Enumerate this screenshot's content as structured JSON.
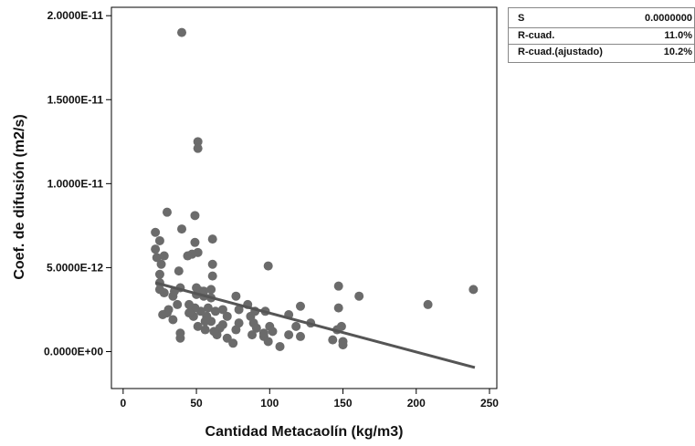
{
  "chart_data": {
    "type": "scatter",
    "title": "",
    "xlabel": "Cantidad Metacaolín (kg/m3)",
    "ylabel": "Coef. de difusión (m2/s)",
    "xlim": [
      -8,
      255
    ],
    "ylim": [
      -2.2e-12,
      2.05e-11
    ],
    "x_ticks": [
      0,
      50,
      100,
      150,
      200,
      250
    ],
    "x_tick_labels": [
      "0",
      "50",
      "100",
      "150",
      "200",
      "250"
    ],
    "y_ticks": [
      0,
      5e-12,
      1e-11,
      1.5e-11,
      2e-11
    ],
    "y_tick_labels": [
      "0.0000E+00",
      "5.0000E-12",
      "1.0000E-11",
      "1.5000E-11",
      "2.0000E-11"
    ],
    "grid": false,
    "point_color": "#6b6b6b",
    "line_color": "#555555",
    "fit_line": {
      "x": [
        22,
        240
      ],
      "y": [
        4.1e-12,
        -9.5e-13
      ]
    },
    "points": [
      [
        40,
        1.9e-11
      ],
      [
        51,
        1.25e-11
      ],
      [
        51,
        1.21e-11
      ],
      [
        99,
        5.1e-12
      ],
      [
        239,
        3.7e-12
      ],
      [
        208,
        2.8e-12
      ],
      [
        161,
        3.3e-12
      ],
      [
        147,
        3.9e-12
      ],
      [
        147,
        2.6e-12
      ],
      [
        149,
        1.5e-12
      ],
      [
        146,
        1.3e-12
      ],
      [
        150,
        6e-13
      ],
      [
        150,
        4e-13
      ],
      [
        121,
        2.7e-12
      ],
      [
        113,
        2.2e-12
      ],
      [
        118,
        1.5e-12
      ],
      [
        121,
        9e-13
      ],
      [
        113,
        1e-12
      ],
      [
        128,
        1.7e-12
      ],
      [
        100,
        1.5e-12
      ],
      [
        102,
        1.2e-12
      ],
      [
        96,
        9e-13
      ],
      [
        99,
        6e-13
      ],
      [
        96,
        1.1e-12
      ],
      [
        97,
        2.4e-12
      ],
      [
        90,
        2.4e-12
      ],
      [
        89,
        1.7e-12
      ],
      [
        87,
        2.1e-12
      ],
      [
        85,
        2.8e-12
      ],
      [
        91,
        1.4e-12
      ],
      [
        88,
        1e-12
      ],
      [
        79,
        2.5e-12
      ],
      [
        77,
        3.3e-12
      ],
      [
        79,
        1.7e-12
      ],
      [
        77,
        1.3e-12
      ],
      [
        75,
        5e-13
      ],
      [
        71,
        8e-13
      ],
      [
        68,
        1.6e-12
      ],
      [
        71,
        2.1e-12
      ],
      [
        68,
        2.5e-12
      ],
      [
        66,
        1.4e-12
      ],
      [
        64,
        1e-12
      ],
      [
        62,
        1.2e-12
      ],
      [
        61,
        6.7e-12
      ],
      [
        61,
        5.2e-12
      ],
      [
        61,
        4.5e-12
      ],
      [
        60,
        3.7e-12
      ],
      [
        60,
        3.2e-12
      ],
      [
        58,
        2.6e-12
      ],
      [
        60,
        1.8e-12
      ],
      [
        56,
        1.3e-12
      ],
      [
        57,
        2.1e-12
      ],
      [
        55,
        3.3e-12
      ],
      [
        55,
        3.6e-12
      ],
      [
        53,
        3.6e-12
      ],
      [
        53,
        2.4e-12
      ],
      [
        51,
        5.9e-12
      ],
      [
        49,
        6.5e-12
      ],
      [
        49,
        8.1e-12
      ],
      [
        47,
        5.8e-12
      ],
      [
        50,
        3.8e-12
      ],
      [
        50,
        3.4e-12
      ],
      [
        49,
        2.6e-12
      ],
      [
        48,
        2.1e-12
      ],
      [
        45,
        2.8e-12
      ],
      [
        44,
        5.7e-12
      ],
      [
        45,
        2.3e-12
      ],
      [
        51,
        1.5e-12
      ],
      [
        38,
        4.8e-12
      ],
      [
        39,
        3.8e-12
      ],
      [
        37,
        2.8e-12
      ],
      [
        35,
        3.6e-12
      ],
      [
        34,
        3.3e-12
      ],
      [
        34,
        1.9e-12
      ],
      [
        31,
        2.5e-12
      ],
      [
        30,
        8.3e-12
      ],
      [
        30,
        2.3e-12
      ],
      [
        28,
        3.5e-12
      ],
      [
        27,
        2.2e-12
      ],
      [
        26,
        5.2e-12
      ],
      [
        25,
        4.6e-12
      ],
      [
        25,
        4.1e-12
      ],
      [
        25,
        3.7e-12
      ],
      [
        23,
        5.6e-12
      ],
      [
        22,
        6.1e-12
      ],
      [
        25,
        6.6e-12
      ],
      [
        22,
        7.1e-12
      ],
      [
        28,
        5.7e-12
      ],
      [
        40,
        7.3e-12
      ],
      [
        39,
        8e-13
      ],
      [
        39,
        1.1e-12
      ],
      [
        56,
        1.8e-12
      ],
      [
        63,
        2.4e-12
      ],
      [
        107,
        3e-13
      ],
      [
        143,
        7e-13
      ]
    ]
  },
  "stats": [
    {
      "label": "S",
      "value": "0.0000000"
    },
    {
      "label": "R-cuad.",
      "value": "11.0%"
    },
    {
      "label": "R-cuad.(ajustado)",
      "value": "10.2%"
    }
  ]
}
